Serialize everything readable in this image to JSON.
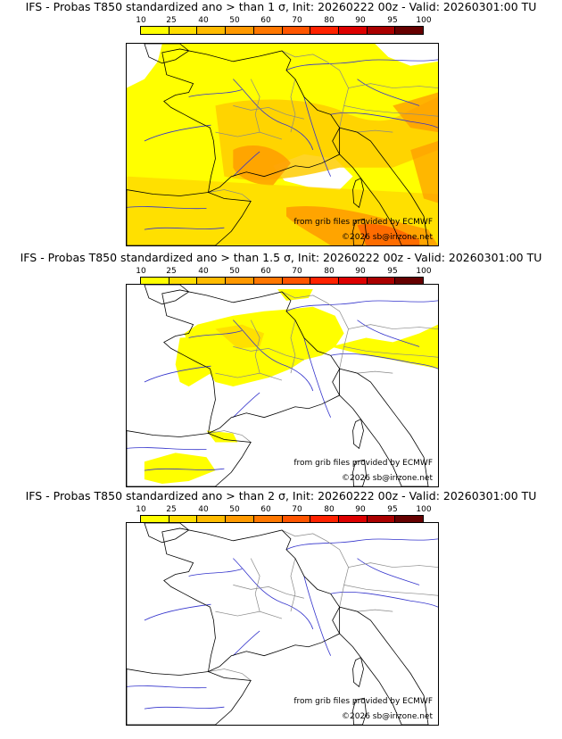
{
  "colors": {
    "colorbar": [
      "#ffff00",
      "#ffdd00",
      "#ffbb00",
      "#ff9900",
      "#ff7700",
      "#ff5500",
      "#ff2200",
      "#dd0000",
      "#aa0000",
      "#660000"
    ],
    "land_low": "#ffff00",
    "land_mid": "#ffcc00",
    "land_high": "#ff9900",
    "land_peak": "#ff6600",
    "coast": "#000000",
    "rivers": "#3333cc",
    "borders": "#888888"
  },
  "colorbar_ticks": [
    "10",
    "25",
    "40",
    "50",
    "60",
    "70",
    "80",
    "90",
    "95",
    "100"
  ],
  "credits": {
    "source": "from grib files provided by ECMWF",
    "copyright": "©2026 sb@irizone.net"
  },
  "panels": [
    {
      "title": "IFS - Probas T850  standardized ano > than 1 σ, Init: 20260222 00z - Valid: 20260301:00 TU",
      "coverage": "high"
    },
    {
      "title": "IFS - Probas T850  standardized ano > than 1.5 σ, Init: 20260222 00z - Valid: 20260301:00 TU",
      "coverage": "medium"
    },
    {
      "title": "IFS - Probas T850  standardized ano > than 2 σ, Init: 20260222 00z - Valid: 20260301:00 TU",
      "coverage": "none"
    }
  ]
}
